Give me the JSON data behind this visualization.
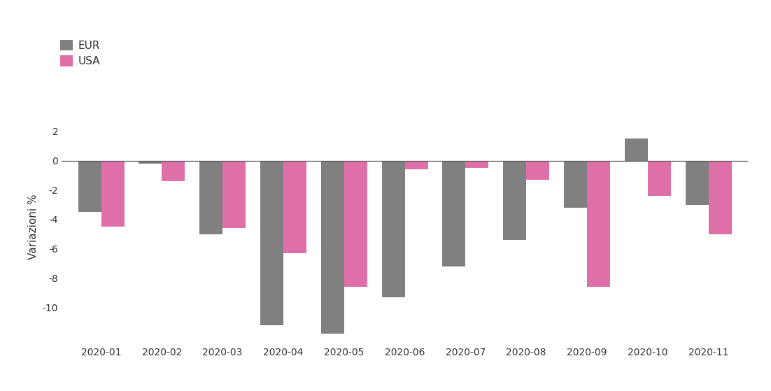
{
  "months": [
    "2020-01",
    "2020-02",
    "2020-03",
    "2020-04",
    "2020-05",
    "2020-06",
    "2020-07",
    "2020-08",
    "2020-09",
    "2020-10",
    "2020-11"
  ],
  "eur_values": [
    -3.5,
    -0.2,
    -5.0,
    -11.2,
    -11.8,
    -9.3,
    -7.2,
    -5.4,
    -3.2,
    1.5,
    -3.0
  ],
  "usa_values": [
    -4.5,
    -1.4,
    -4.6,
    -6.3,
    -8.6,
    -0.6,
    -0.5,
    -1.3,
    -8.6,
    -2.4,
    -5.0
  ],
  "eur_color": "#808080",
  "usa_color": "#df6fa8",
  "ylabel": "Variazioni %",
  "eur_label": "EUR",
  "usa_label": "USA",
  "background_color": "#ffffff",
  "ylim_min": -12.5,
  "ylim_max": 3.5,
  "yticks": [
    -10,
    -8,
    -6,
    -4,
    -2,
    0,
    2
  ],
  "bar_width": 0.38
}
